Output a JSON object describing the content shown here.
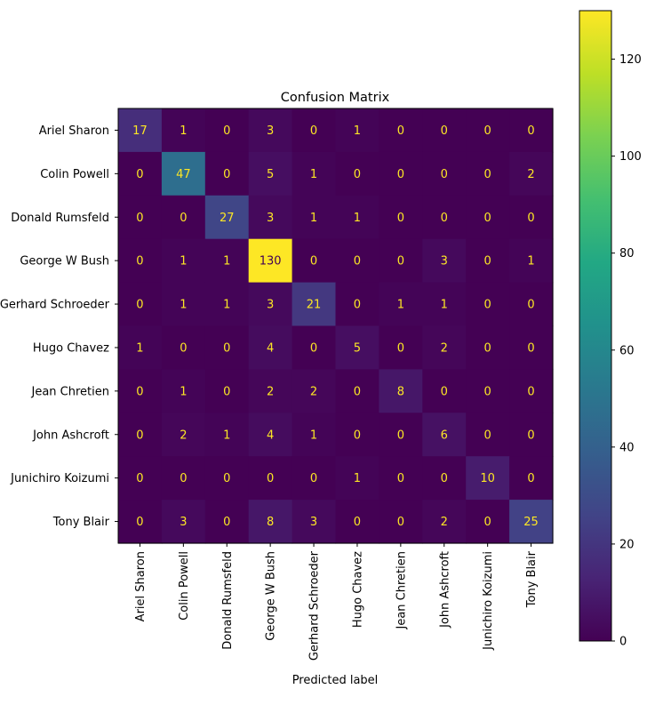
{
  "chart_data": {
    "type": "heatmap",
    "title": "Confusion Matrix",
    "xlabel": "Predicted label",
    "ylabel": "",
    "labels": [
      "Ariel Sharon",
      "Colin Powell",
      "Donald Rumsfeld",
      "George W Bush",
      "Gerhard Schroeder",
      "Hugo Chavez",
      "Jean Chretien",
      "John Ashcroft",
      "Junichiro Koizumi",
      "Tony Blair"
    ],
    "matrix": [
      [
        17,
        1,
        0,
        3,
        0,
        1,
        0,
        0,
        0,
        0
      ],
      [
        0,
        47,
        0,
        5,
        1,
        0,
        0,
        0,
        0,
        2
      ],
      [
        0,
        0,
        27,
        3,
        1,
        1,
        0,
        0,
        0,
        0
      ],
      [
        0,
        1,
        1,
        130,
        0,
        0,
        0,
        3,
        0,
        1
      ],
      [
        0,
        1,
        1,
        3,
        21,
        0,
        1,
        1,
        0,
        0
      ],
      [
        1,
        0,
        0,
        4,
        0,
        5,
        0,
        2,
        0,
        0
      ],
      [
        0,
        1,
        0,
        2,
        2,
        0,
        8,
        0,
        0,
        0
      ],
      [
        0,
        2,
        1,
        4,
        1,
        0,
        0,
        6,
        0,
        0
      ],
      [
        0,
        0,
        0,
        0,
        0,
        1,
        0,
        0,
        10,
        0
      ],
      [
        0,
        3,
        0,
        8,
        3,
        0,
        0,
        2,
        0,
        25
      ]
    ],
    "colorbar": {
      "vmin": 0,
      "vmax": 130,
      "ticks": [
        0,
        20,
        40,
        60,
        80,
        100,
        120
      ],
      "colormap": "viridis"
    }
  }
}
